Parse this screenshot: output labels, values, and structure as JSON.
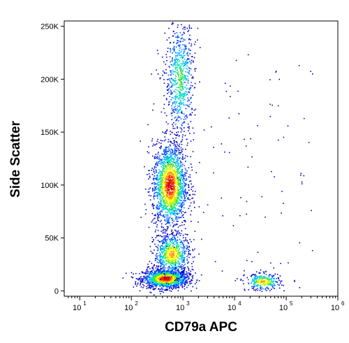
{
  "chart_data": {
    "type": "scatter",
    "title": "",
    "xlabel": "CD79a APC",
    "ylabel": "Side Scatter",
    "x_scale": "log",
    "xlim": [
      5,
      1000000
    ],
    "y_scale": "linear",
    "ylim": [
      -5000,
      255000
    ],
    "x_ticks": [
      {
        "base": "10",
        "exp": "1",
        "value": 10
      },
      {
        "base": "10",
        "exp": "2",
        "value": 100
      },
      {
        "base": "10",
        "exp": "3",
        "value": 1000
      },
      {
        "base": "10",
        "exp": "4",
        "value": 10000
      },
      {
        "base": "10",
        "exp": "5",
        "value": 100000
      },
      {
        "base": "10",
        "exp": "6",
        "value": 1000000
      }
    ],
    "y_ticks": [
      {
        "label": "0",
        "value": 0
      },
      {
        "label": "50K",
        "value": 50000
      },
      {
        "label": "100K",
        "value": 100000
      },
      {
        "label": "150K",
        "value": 150000
      },
      {
        "label": "200K",
        "value": 200000
      },
      {
        "label": "250K",
        "value": 250000
      }
    ],
    "grid": false,
    "legend": "none",
    "colormap": [
      "#0000c8",
      "#0050ff",
      "#00b4ff",
      "#00e6b4",
      "#3cdc3c",
      "#b4f000",
      "#ffff00",
      "#ff9600",
      "#ff2800",
      "#c80000"
    ],
    "populations": [
      {
        "x_center": 450,
        "y_center": 12000,
        "count": 1500,
        "density": "high"
      },
      {
        "x_center": 550,
        "y_center": 100000,
        "count": 1800,
        "density": "high"
      },
      {
        "x_center": 600,
        "y_center": 35000,
        "count": 700,
        "density": "medium"
      },
      {
        "x_center": 850,
        "y_center": 200000,
        "count": 700,
        "density": "low"
      },
      {
        "x_center": 35000,
        "y_center": 9000,
        "count": 300,
        "density": "medium"
      }
    ]
  }
}
